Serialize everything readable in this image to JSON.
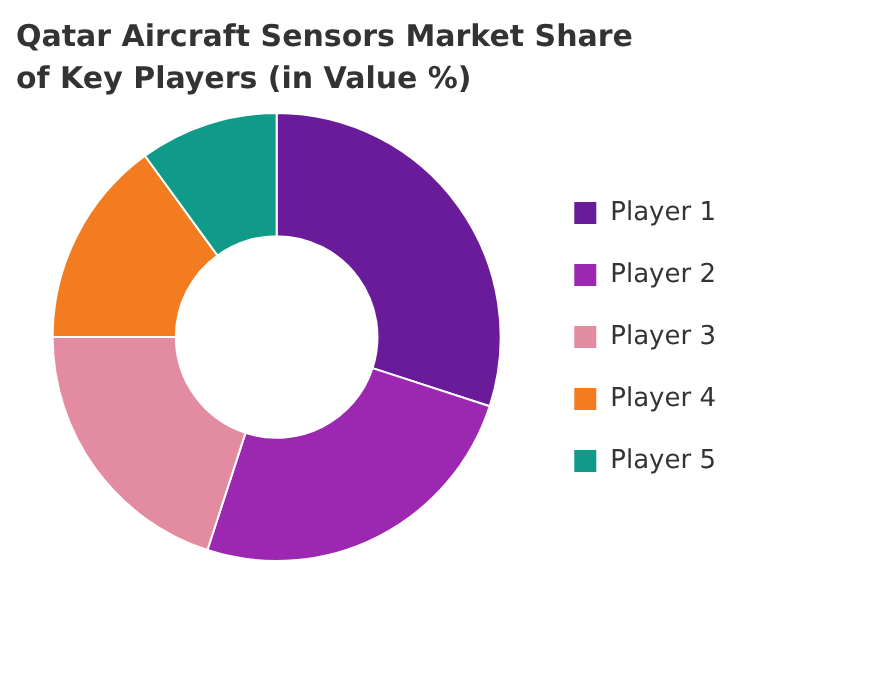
{
  "chart_data": {
    "type": "donut",
    "title": "Qatar Aircraft Sensors Market Share of Key Players (in Value %)",
    "categories": [
      "Player 1",
      "Player 2",
      "Player 3",
      "Player 4",
      "Player 5"
    ],
    "values": [
      30,
      25,
      20,
      15,
      10
    ],
    "colors": [
      "#6a1b9a",
      "#9c27b0",
      "#e38ba0",
      "#f47c20",
      "#0f9a8a"
    ],
    "legend": "right"
  }
}
